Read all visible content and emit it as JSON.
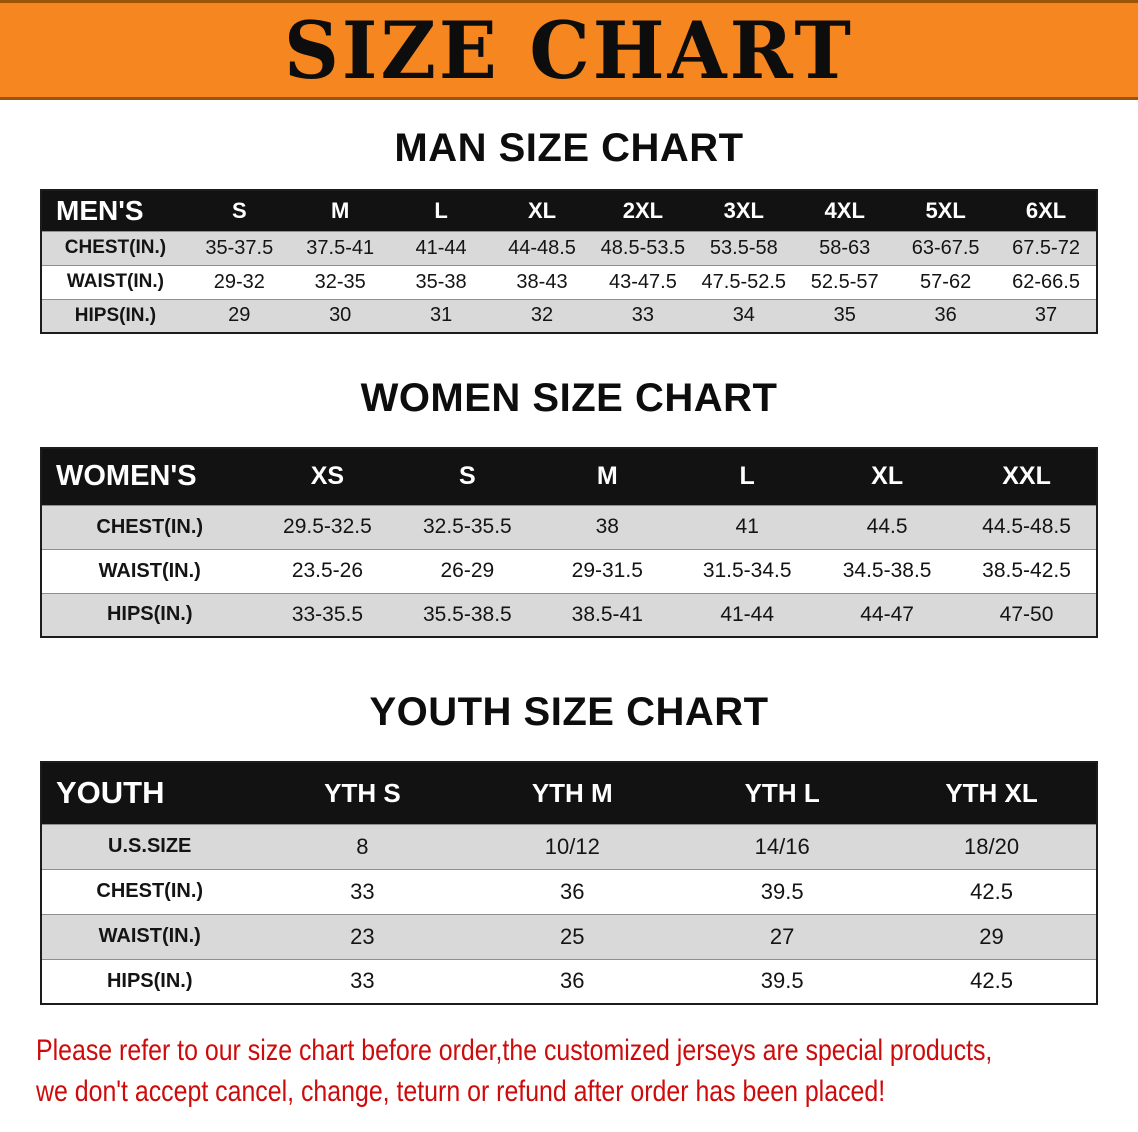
{
  "banner": {
    "title": "SIZE CHART"
  },
  "charts": [
    {
      "heading": "MAN SIZE CHART",
      "header": [
        "MEN'S",
        "S",
        "M",
        "L",
        "XL",
        "2XL",
        "3XL",
        "4XL",
        "5XL",
        "6XL"
      ],
      "rows": [
        [
          "CHEST(IN.)",
          "35-37.5",
          "37.5-41",
          "41-44",
          "44-48.5",
          "48.5-53.5",
          "53.5-58",
          "58-63",
          "63-67.5",
          "67.5-72"
        ],
        [
          "WAIST(IN.)",
          "29-32",
          "32-35",
          "35-38",
          "38-43",
          "43-47.5",
          "47.5-52.5",
          "52.5-57",
          "57-62",
          "62-66.5"
        ],
        [
          "HIPS(IN.)",
          "29",
          "30",
          "31",
          "32",
          "33",
          "34",
          "35",
          "36",
          "37"
        ]
      ]
    },
    {
      "heading": "WOMEN SIZE CHART",
      "header": [
        "WOMEN'S",
        "XS",
        "S",
        "M",
        "L",
        "XL",
        "XXL"
      ],
      "rows": [
        [
          "CHEST(IN.)",
          "29.5-32.5",
          "32.5-35.5",
          "38",
          "41",
          "44.5",
          "44.5-48.5"
        ],
        [
          "WAIST(IN.)",
          "23.5-26",
          "26-29",
          "29-31.5",
          "31.5-34.5",
          "34.5-38.5",
          "38.5-42.5"
        ],
        [
          "HIPS(IN.)",
          "33-35.5",
          "35.5-38.5",
          "38.5-41",
          "41-44",
          "44-47",
          "47-50"
        ]
      ]
    },
    {
      "heading": "YOUTH SIZE CHART",
      "header": [
        "YOUTH",
        "YTH S",
        "YTH M",
        "YTH L",
        "YTH XL"
      ],
      "rows": [
        [
          "U.S.SIZE",
          "8",
          "10/12",
          "14/16",
          "18/20"
        ],
        [
          "CHEST(IN.)",
          "33",
          "36",
          "39.5",
          "42.5"
        ],
        [
          "WAIST(IN.)",
          "23",
          "25",
          "27",
          "29"
        ],
        [
          "HIPS(IN.)",
          "33",
          "36",
          "39.5",
          "42.5"
        ]
      ]
    }
  ],
  "disclaimer": {
    "lines": [
      "Please refer to our size chart before order,the customized jerseys are special products,",
      "we don't accept cancel, change, teturn or refund after order has been placed!"
    ]
  },
  "colors": {
    "banner_bg": "#F6861F",
    "header_bg": "#121212",
    "stripe": "#D9D9D9",
    "disclaimer_red": "#CE0B0B"
  }
}
